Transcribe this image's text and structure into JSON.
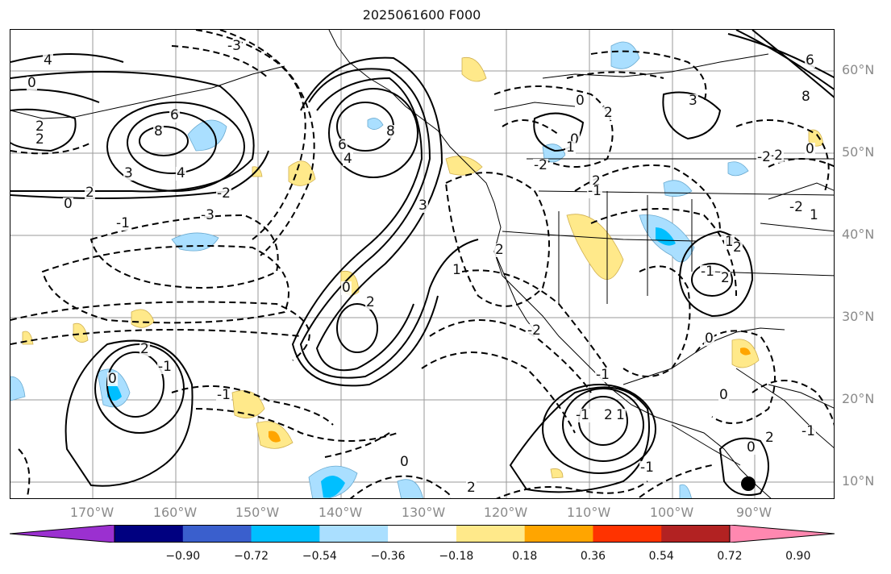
{
  "title": "2025061600 F000",
  "lat_labels": [
    "60°N",
    "50°N",
    "40°N",
    "30°N",
    "20°N",
    "10°N"
  ],
  "lon_labels": [
    "170°W",
    "160°W",
    "150°W",
    "140°W",
    "130°W",
    "120°W",
    "110°W",
    "100°W",
    "90°W"
  ],
  "colorbar": {
    "ticks": [
      "−0.90",
      "−0.72",
      "−0.54",
      "−0.36",
      "−0.18",
      "0.18",
      "0.36",
      "0.54",
      "0.72",
      "0.90"
    ],
    "colors": [
      "#9b30d0",
      "#000080",
      "#3a5fcd",
      "#00bfff",
      "#aadfff",
      "#ffffff",
      "#ffe98a",
      "#ffa500",
      "#ff3300",
      "#b22222",
      "#ff88b0"
    ]
  },
  "contour_labels": [
    "-3",
    "4",
    "0",
    "2",
    "2",
    "6",
    "8",
    "3",
    "4",
    "2",
    "0",
    "-1",
    "-3",
    "-2",
    "8",
    "6",
    "4",
    "0",
    "2",
    "0",
    "1",
    "3",
    "2",
    "-1",
    "-2",
    "-2",
    "0",
    "-1",
    "2",
    "1",
    "0",
    "2",
    "-1",
    "2",
    "0",
    "-2",
    "1",
    "-1",
    "2",
    "-1",
    "0",
    "2",
    "-1",
    "3",
    "2",
    "0",
    "0",
    "-1",
    "1",
    "-2",
    "-2",
    "6",
    "8",
    "1",
    "0",
    "2",
    "2",
    "-1",
    "0"
  ]
}
